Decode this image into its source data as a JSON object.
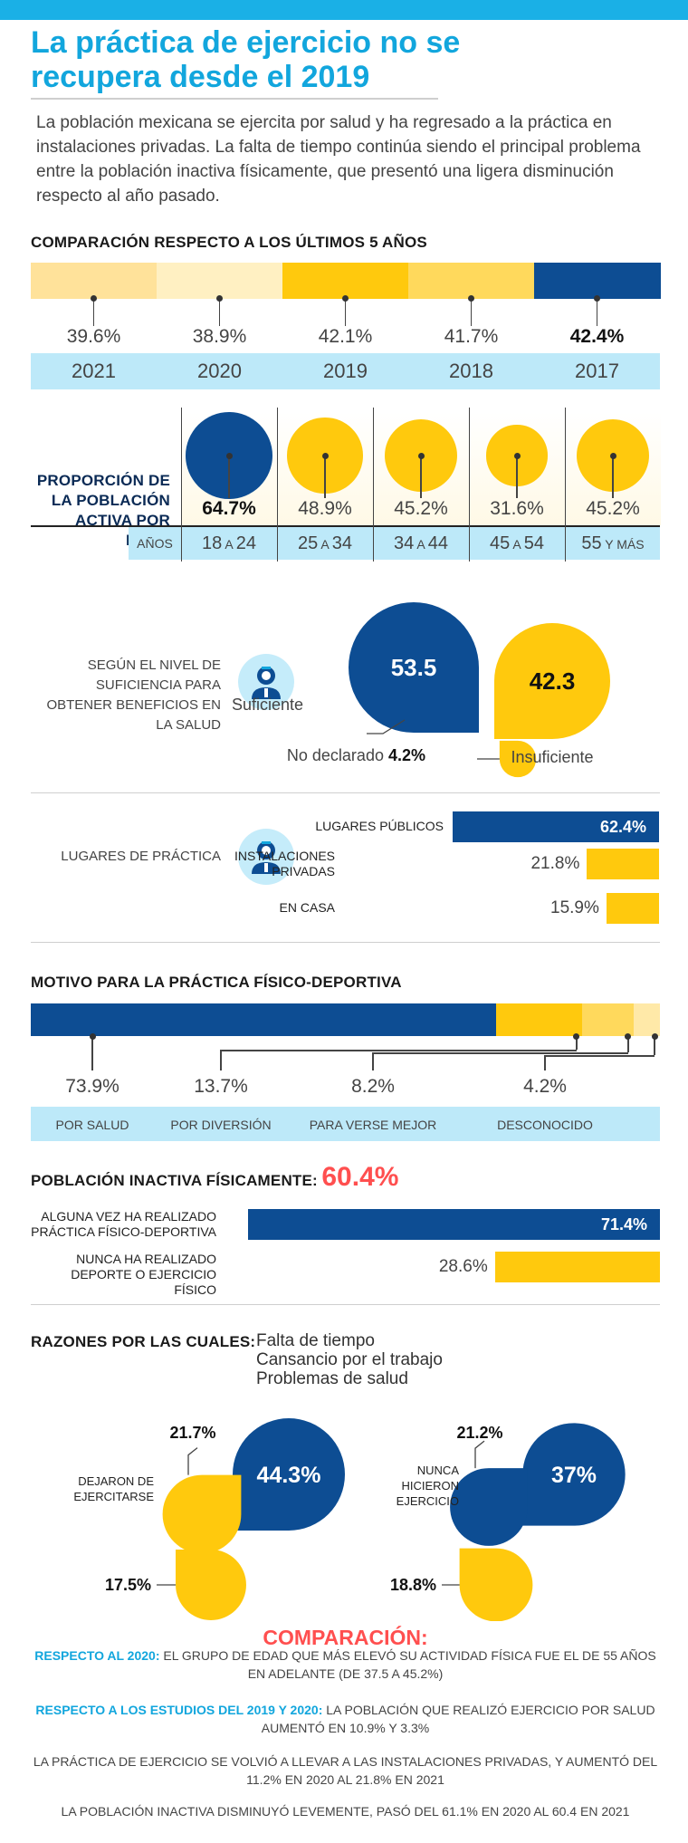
{
  "title": "La práctica de ejercicio no se recupera desde el 2019",
  "intro": "La población mexicana se ejercita por salud y ha regresado a la práctica en instalaciones privadas. La falta de tiempo continúa siendo el principal problema entre la población inactiva físicamente, que presentó una ligera disminución respecto al año pasado.",
  "colors": {
    "navy": "#0d4d93",
    "yellow": "#ffc90d",
    "cyan": "#12a6dd",
    "red": "#ff4f4f",
    "band": "#bde9f9"
  },
  "icons": [
    "doctor-icon",
    "doctor-icon"
  ],
  "chart_data": [
    {
      "type": "bar",
      "title": "COMPARACIÓN RESPECTO A LOS ÚLTIMOS 5 AÑOS",
      "categories": [
        "2021",
        "2020",
        "2019",
        "2018",
        "2017"
      ],
      "values": [
        39.6,
        38.9,
        42.1,
        41.7,
        42.4
      ],
      "value_labels": [
        "39.6%",
        "38.9%",
        "42.1%",
        "41.7%",
        "42.4%"
      ],
      "segment_colors": [
        "#ffe29a",
        "#fff0c2",
        "#ffc90d",
        "#ffd95c",
        "#0d4d93"
      ]
    },
    {
      "type": "scatter",
      "title": "PROPORCIÓN DE LA POBLACIÓN ACTIVA POR EDAD",
      "axis_label": "AÑOS",
      "categories": [
        {
          "a": "18",
          "sep": "A",
          "b": "24"
        },
        {
          "a": "25",
          "sep": "A",
          "b": "34"
        },
        {
          "a": "34",
          "sep": "A",
          "b": "44"
        },
        {
          "a": "45",
          "sep": "A",
          "b": "54"
        },
        {
          "a": "55",
          "sep": "Y MÁS",
          "b": ""
        }
      ],
      "values": [
        64.7,
        48.9,
        45.2,
        31.6,
        45.2
      ],
      "value_labels": [
        "64.7%",
        "48.9%",
        "45.2%",
        "31.6%",
        "45.2%"
      ]
    },
    {
      "type": "pie",
      "title": "SEGÚN EL NIVEL DE SUFICIENCIA PARA OBTENER BENEFICIOS EN LA SALUD",
      "categories": [
        "Suficiente",
        "Insuficiente",
        "No declarado"
      ],
      "values": [
        53.5,
        42.3,
        4.2
      ],
      "value_labels": [
        "53.5",
        "42.3",
        "4.2%"
      ]
    },
    {
      "type": "bar",
      "title": "LUGARES DE PRÁCTICA",
      "categories": [
        "LUGARES PÚBLICOS",
        "INSTALACIONES PRIVADAS",
        "EN CASA"
      ],
      "values": [
        62.4,
        21.8,
        15.9
      ],
      "value_labels": [
        "62.4%",
        "21.8%",
        "15.9%"
      ]
    },
    {
      "type": "bar",
      "title": "MOTIVO PARA LA PRÁCTICA FÍSICO-DEPORTIVA",
      "categories": [
        "POR SALUD",
        "POR DIVERSIÓN",
        "PARA VERSE MEJOR",
        "DESCONOCIDO"
      ],
      "values": [
        73.9,
        13.7,
        8.2,
        4.2
      ],
      "value_labels": [
        "73.9%",
        "13.7%",
        "8.2%",
        "4.2%"
      ]
    },
    {
      "type": "bar",
      "title": "POBLACIÓN INACTIVA FÍSICAMENTE:",
      "headline_value": "60.4%",
      "categories": [
        "ALGUNA VEZ HA REALIZADO PRÁCTICA FÍSICO-DEPORTIVA",
        "NUNCA HA REALIZADO DEPORTE O EJERCICIO FÍSICO"
      ],
      "values": [
        71.4,
        28.6
      ],
      "value_labels": [
        "71.4%",
        "28.6%"
      ]
    },
    {
      "type": "pie",
      "title": "RAZONES POR LAS CUALES:",
      "legend": [
        "Falta de tiempo",
        "Cansancio por el trabajo",
        "Problemas de salud"
      ],
      "groups": [
        {
          "label": "DEJARON DE EJERCITARSE",
          "values": [
            44.3,
            21.7,
            17.5
          ],
          "value_labels": [
            "44.3%",
            "21.7%",
            "17.5%"
          ]
        },
        {
          "label": "NUNCA HICIERON EJERCICIO",
          "values": [
            37,
            21.2,
            18.8
          ],
          "value_labels": [
            "37%",
            "21.2%",
            "18.8%"
          ]
        }
      ]
    }
  ],
  "comparison": {
    "title": "COMPARACIÓN:",
    "p1_hl": "RESPECTO AL 2020:",
    "p1": " EL GRUPO DE EDAD QUE MÁS ELEVÓ SU ACTIVIDAD FÍSICA FUE EL DE 55 AÑOS EN ADELANTE (DE 37.5 A 45.2%)",
    "p2_hl": "RESPECTO A LOS ESTUDIOS DEL 2019 Y 2020:",
    "p2": " LA POBLACIÓN QUE REALIZÓ EJERCICIO POR SALUD AUMENTÓ EN 10.9% Y 3.3%",
    "p3": "LA PRÁCTICA DE EJERCICIO SE VOLVIÓ A LLEVAR A LAS INSTALACIONES PRIVADAS, Y AUMENTÓ DEL 11.2% EN 2020 AL 21.8% EN 2021",
    "p4": "LA POBLACIÓN INACTIVA DISMINUYÓ LEVEMENTE, PASÓ DEL 61.1% EN 2020 AL 60.4 EN 2021"
  }
}
